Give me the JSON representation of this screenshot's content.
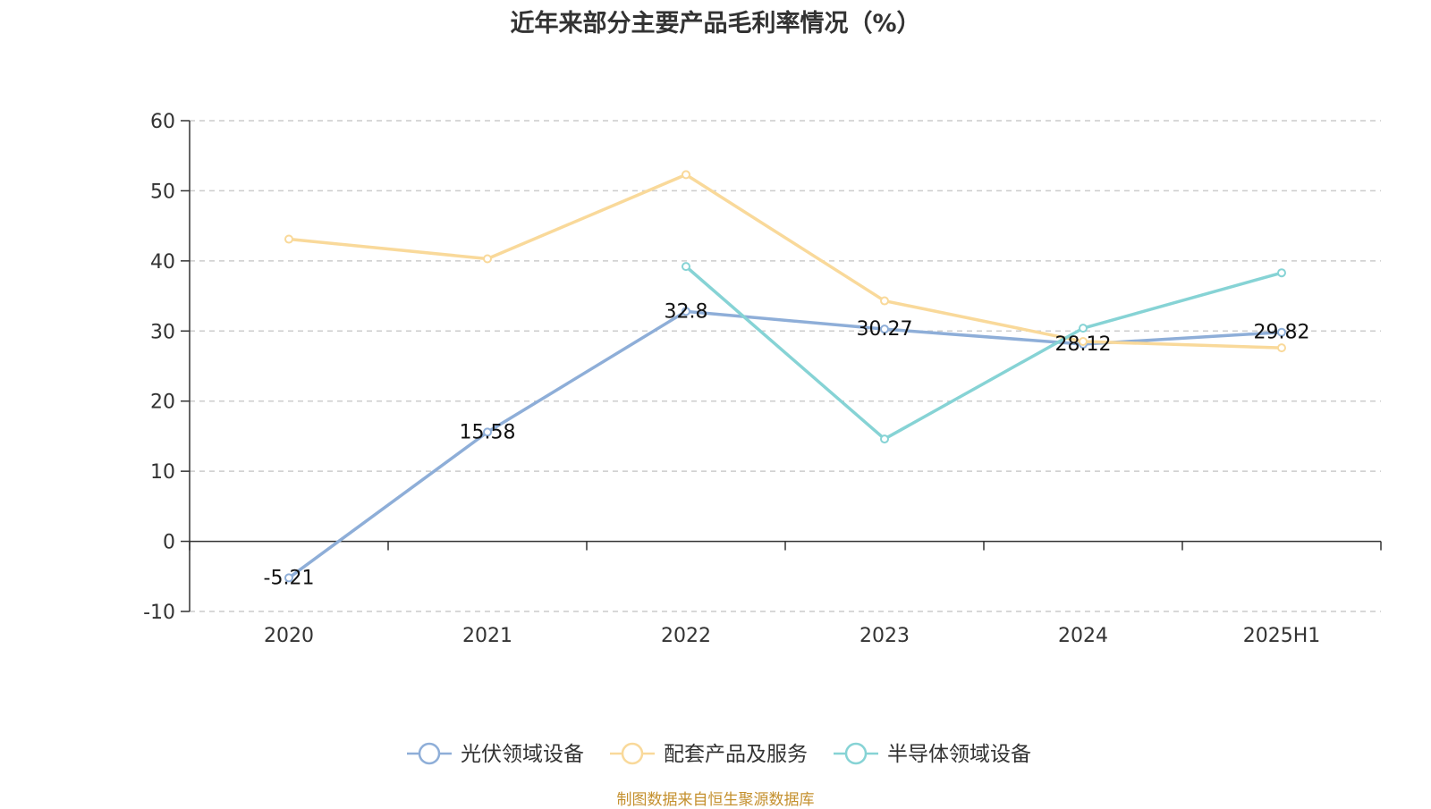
{
  "chart_data": {
    "type": "line",
    "title": "近年来部分主要产品毛利率情况（%）",
    "categories": [
      "2020",
      "2021",
      "2022",
      "2023",
      "2024",
      "2025H1"
    ],
    "ylim": [
      -10,
      60
    ],
    "yticks": [
      -10,
      0,
      10,
      20,
      30,
      40,
      50,
      60
    ],
    "grid": true,
    "legend_position": "bottom",
    "series": [
      {
        "name": "光伏领域设备",
        "color": "#8eaed8",
        "values": [
          -5.21,
          15.58,
          32.8,
          30.27,
          28.12,
          29.82
        ],
        "labels": [
          "-5.21",
          "15.58",
          "32.8",
          "30.27",
          "28.12",
          "29.82"
        ]
      },
      {
        "name": "配套产品及服务",
        "color": "#f9d99a",
        "values": [
          43.1,
          40.3,
          52.3,
          34.3,
          28.5,
          27.6
        ]
      },
      {
        "name": "半导体领域设备",
        "color": "#86d3d5",
        "values": [
          null,
          null,
          39.2,
          14.6,
          30.4,
          38.3
        ]
      }
    ]
  },
  "source": "制图数据来自恒生聚源数据库"
}
